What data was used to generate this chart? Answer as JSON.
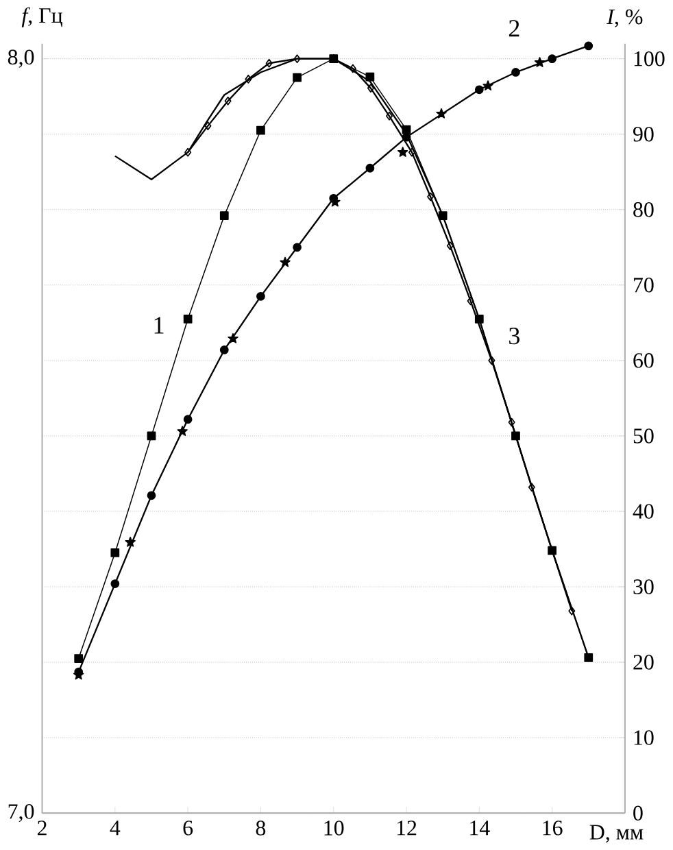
{
  "chart_data": {
    "type": "line",
    "xlabel": "D, мм",
    "ylabel": "*f*, Гц",
    "y2label": "*I*, %",
    "xlim": [
      2,
      18
    ],
    "xticks": [
      2,
      4,
      6,
      8,
      10,
      12,
      14,
      16
    ],
    "ylim": [
      7,
      8.02
    ],
    "yticks": [
      {
        "value": 7,
        "label": "7,0"
      },
      {
        "value": 8,
        "label": "8,0"
      }
    ],
    "y2lim": [
      0,
      102
    ],
    "y2ticks": [
      0,
      10,
      20,
      30,
      40,
      50,
      60,
      70,
      80,
      90,
      100
    ],
    "grid": true,
    "series": [
      {
        "type": "line",
        "axis": "y2",
        "color": "#000000",
        "marker": "square",
        "x": [
          3,
          4,
          5,
          6,
          7,
          8,
          9,
          10,
          11,
          12,
          13,
          14,
          15,
          16,
          17
        ],
        "values": [
          20.5,
          34.5,
          50,
          65.5,
          79.2,
          90.5,
          97.5,
          100,
          97.6,
          90.6,
          79.2,
          65.5,
          50,
          34.8,
          20.6
        ]
      },
      {
        "type": "line",
        "axis": "y2",
        "color": "#000000",
        "marker": "circle",
        "x": [
          3,
          4,
          5,
          6,
          7,
          8,
          9,
          10,
          11,
          12,
          13,
          14,
          15,
          16,
          17
        ],
        "values": [
          18.7,
          30.4,
          42.1,
          52.2,
          61.4,
          68.5,
          75.0,
          81.5,
          85.5,
          89.6,
          null,
          95.9,
          98.2,
          100,
          101.7
        ]
      },
      {
        "type": "scatter",
        "axis": "y2",
        "color": "#000000",
        "marker": "star",
        "x": [
          3,
          4.42,
          5.85,
          7.24,
          8.67,
          10.04,
          11.9,
          12.96,
          14.24,
          15.66
        ],
        "values": [
          18.3,
          35.9,
          50.6,
          62.9,
          73.0,
          81.0,
          87.6,
          92.7,
          96.4,
          99.5
        ]
      },
      {
        "type": "line",
        "axis": "y2",
        "color": "#000000",
        "marker": "none",
        "x": [
          4,
          5,
          6,
          6.5,
          7,
          8,
          9,
          10,
          11,
          12,
          13,
          14,
          15,
          16,
          17
        ],
        "values": [
          87.1,
          84.0,
          87.6,
          91.5,
          95.2,
          98.2,
          100,
          100,
          97,
          90,
          79.2,
          65.5,
          50,
          34.8,
          20.6
        ]
      },
      {
        "type": "line",
        "axis": "y2",
        "color": "#000000",
        "marker": "diamond",
        "x": [
          6,
          6.55,
          7.1,
          7.66,
          8.23,
          9,
          10,
          10.53,
          11.02,
          11.53,
          12.15,
          12.66,
          13.2,
          13.76,
          14.34,
          14.89,
          15.44,
          16,
          16.54
        ],
        "values": [
          87.6,
          91.1,
          94.4,
          97.3,
          99.4,
          100,
          100,
          98.7,
          96.1,
          92.4,
          87.6,
          81.7,
          75.2,
          67.9,
          60,
          51.8,
          43.2,
          null,
          26.8
        ]
      }
    ],
    "annotations": [
      "1",
      "2",
      "3"
    ]
  }
}
